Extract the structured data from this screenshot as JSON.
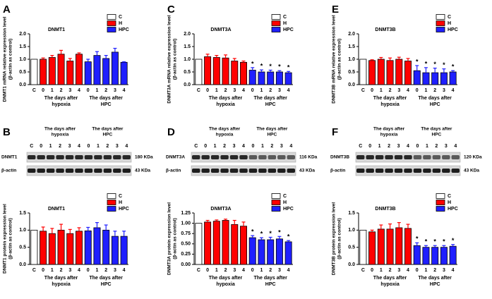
{
  "chart_data": [
    {
      "panel": "A",
      "type": "bar",
      "title": "DNMT1",
      "y_label": [
        "DNMT1 mRNA relative expression level",
        "(β-actin as control)"
      ],
      "categories": [
        "C",
        "0",
        "1",
        "2",
        "3",
        "4",
        "0",
        "1",
        "2",
        "3",
        "4"
      ],
      "group_labels": [
        [
          "The days after",
          "hypoxia"
        ],
        [
          "The days after",
          "HPC"
        ]
      ],
      "series": [
        {
          "name": "C",
          "color": "#ffffff",
          "values": [
            1.0,
            null,
            null,
            null,
            null,
            null,
            null,
            null,
            null,
            null,
            null
          ],
          "errors": [
            null,
            null,
            null,
            null,
            null,
            null,
            null,
            null,
            null,
            null,
            null
          ]
        },
        {
          "name": "H",
          "color": "#ff0000",
          "values": [
            null,
            1.0,
            1.07,
            1.2,
            0.93,
            1.2,
            null,
            null,
            null,
            null,
            null
          ],
          "errors": [
            null,
            0.05,
            0.08,
            0.15,
            0.1,
            0.05,
            null,
            null,
            null,
            null,
            null
          ]
        },
        {
          "name": "HPC",
          "color": "#1f1fff",
          "values": [
            null,
            null,
            null,
            null,
            null,
            null,
            0.9,
            1.15,
            1.03,
            1.28,
            0.88
          ],
          "errors": [
            null,
            null,
            null,
            null,
            null,
            null,
            0.1,
            0.15,
            0.12,
            0.15,
            0.02
          ]
        }
      ],
      "ylim": [
        0,
        2
      ],
      "yticks": [
        {
          "value": 0,
          "label": "0.0"
        },
        0.5,
        {
          "value": 1,
          "label": "1.0"
        },
        1.5,
        {
          "value": 2,
          "label": "2.0"
        }
      ]
    },
    {
      "panel": "C",
      "type": "bar",
      "title": "DNMT3A",
      "y_label": [
        "DNMT3A mRNA relative expression level",
        "(β-actin as control)"
      ],
      "categories": [
        "C",
        "0",
        "1",
        "2",
        "3",
        "4",
        "0",
        "1",
        "2",
        "3",
        "4"
      ],
      "group_labels": [
        [
          "The days after",
          "hypoxia"
        ],
        [
          "The days after",
          "HPC"
        ]
      ],
      "series": [
        {
          "name": "C",
          "color": "#ffffff",
          "values": [
            1.0,
            null,
            null,
            null,
            null,
            null,
            null,
            null,
            null,
            null,
            null
          ],
          "errors": [
            null,
            null,
            null,
            null,
            null,
            null,
            null,
            null,
            null,
            null,
            null
          ]
        },
        {
          "name": "H",
          "color": "#ff0000",
          "values": [
            null,
            1.1,
            1.07,
            1.05,
            0.93,
            0.88,
            null,
            null,
            null,
            null,
            null
          ],
          "errors": [
            null,
            0.1,
            0.08,
            0.12,
            0.1,
            0.05,
            null,
            null,
            null,
            null,
            null
          ]
        },
        {
          "name": "HPC",
          "color": "#1f1fff",
          "values": [
            null,
            null,
            null,
            null,
            null,
            null,
            0.57,
            0.5,
            0.5,
            0.5,
            0.47
          ],
          "errors": [
            null,
            null,
            null,
            null,
            null,
            null,
            0.1,
            0.08,
            0.07,
            0.05,
            0.05
          ]
        }
      ],
      "significance": [
        null,
        null,
        null,
        null,
        null,
        null,
        "*",
        "*",
        "*",
        "*",
        "*"
      ],
      "ylim": [
        0,
        2
      ],
      "yticks": [
        {
          "value": 0,
          "label": "0.0"
        },
        0.5,
        {
          "value": 1,
          "label": "1.0"
        },
        1.5,
        {
          "value": 2,
          "label": "2.0"
        }
      ]
    },
    {
      "panel": "E",
      "type": "bar",
      "title": "DNMT3B",
      "y_label": [
        "DNMT3B mRNA relative expression level",
        "(β-actin as control)"
      ],
      "categories": [
        "C",
        "0",
        "1",
        "2",
        "3",
        "4",
        "0",
        "1",
        "2",
        "3",
        "4"
      ],
      "group_labels": [
        [
          "The days after",
          "hypoxia"
        ],
        [
          "The days after",
          "HPC"
        ]
      ],
      "series": [
        {
          "name": "C",
          "color": "#ffffff",
          "values": [
            1.0,
            null,
            null,
            null,
            null,
            null,
            null,
            null,
            null,
            null,
            null
          ],
          "errors": [
            null,
            null,
            null,
            null,
            null,
            null,
            null,
            null,
            null,
            null,
            null
          ]
        },
        {
          "name": "H",
          "color": "#ff0000",
          "values": [
            null,
            0.95,
            1.0,
            0.95,
            1.0,
            0.93,
            null,
            null,
            null,
            null,
            null
          ],
          "errors": [
            null,
            0.03,
            0.07,
            0.1,
            0.08,
            0.1,
            null,
            null,
            null,
            null,
            null
          ]
        },
        {
          "name": "HPC",
          "color": "#1f1fff",
          "values": [
            null,
            null,
            null,
            null,
            null,
            null,
            0.55,
            0.47,
            0.47,
            0.47,
            0.5
          ],
          "errors": [
            null,
            null,
            null,
            null,
            null,
            null,
            0.2,
            0.2,
            0.18,
            0.15,
            0.05
          ]
        }
      ],
      "significance": [
        null,
        null,
        null,
        null,
        null,
        null,
        "*",
        "*",
        "*",
        "*",
        "*"
      ],
      "ylim": [
        0,
        2
      ],
      "yticks": [
        {
          "value": 0,
          "label": "0.0"
        },
        0.5,
        {
          "value": 1,
          "label": "1.0"
        },
        1.5,
        {
          "value": 2,
          "label": "2.0"
        }
      ]
    },
    {
      "type": "bar",
      "title": "DNMT1",
      "y_label": [
        "DNMT1 protein expression level",
        "(β-actin as control)"
      ],
      "categories": [
        "C",
        "0",
        "1",
        "2",
        "3",
        "4",
        "0",
        "1",
        "2",
        "3",
        "4"
      ],
      "group_labels": [
        [
          "The days after",
          "hypoxia"
        ],
        [
          "The days after",
          "HPC"
        ]
      ],
      "series": [
        {
          "name": "C",
          "color": "#ffffff",
          "values": [
            1.0,
            null,
            null,
            null,
            null,
            null,
            null,
            null,
            null,
            null,
            null
          ],
          "errors": [
            null,
            null,
            null,
            null,
            null,
            null,
            null,
            null,
            null,
            null,
            null
          ]
        },
        {
          "name": "H",
          "color": "#ff0000",
          "values": [
            null,
            0.97,
            0.9,
            1.0,
            0.9,
            0.97,
            null,
            null,
            null,
            null,
            null
          ],
          "errors": [
            null,
            0.12,
            0.15,
            0.17,
            0.12,
            0.1,
            null,
            null,
            null,
            null,
            null
          ]
        },
        {
          "name": "HPC",
          "color": "#1f1fff",
          "values": [
            null,
            null,
            null,
            null,
            null,
            null,
            0.98,
            1.07,
            1.0,
            0.82,
            0.82
          ],
          "errors": [
            null,
            null,
            null,
            null,
            null,
            null,
            0.1,
            0.15,
            0.15,
            0.15,
            0.15
          ]
        }
      ],
      "ylim": [
        0,
        1.5
      ],
      "yticks": [
        {
          "value": 0,
          "label": "0.0"
        },
        0.5,
        {
          "value": 1,
          "label": "1.0"
        },
        1.5
      ]
    },
    {
      "type": "bar",
      "title": "DNMT3A",
      "y_label": [
        "DNMT3A protein expression level",
        "(β-actin as control)"
      ],
      "categories": [
        "C",
        "0",
        "1",
        "2",
        "3",
        "4",
        "0",
        "1",
        "2",
        "3",
        "4"
      ],
      "group_labels": [
        [
          "The days after",
          "hypoxia"
        ],
        [
          "The days after",
          "HPC"
        ]
      ],
      "series": [
        {
          "name": "C",
          "color": "#ffffff",
          "values": [
            1.0,
            null,
            null,
            null,
            null,
            null,
            null,
            null,
            null,
            null,
            null
          ],
          "errors": [
            null,
            null,
            null,
            null,
            null,
            null,
            null,
            null,
            null,
            null,
            null
          ]
        },
        {
          "name": "H",
          "color": "#ff0000",
          "values": [
            null,
            1.03,
            1.05,
            1.07,
            0.97,
            0.93,
            null,
            null,
            null,
            null,
            null
          ],
          "errors": [
            null,
            0.04,
            0.03,
            0.03,
            0.1,
            0.1,
            null,
            null,
            null,
            null,
            null
          ]
        },
        {
          "name": "HPC",
          "color": "#1f1fff",
          "values": [
            null,
            null,
            null,
            null,
            null,
            null,
            0.65,
            0.6,
            0.6,
            0.62,
            0.55
          ],
          "errors": [
            null,
            null,
            null,
            null,
            null,
            null,
            0.05,
            0.05,
            0.06,
            0.06,
            0.03
          ]
        }
      ],
      "significance": [
        null,
        null,
        null,
        null,
        null,
        null,
        "*",
        "*",
        "*",
        "*",
        "*"
      ],
      "ylim": [
        0,
        1.25
      ],
      "yticks": [
        {
          "value": 0,
          "label": "0.00"
        },
        0.25,
        {
          "value": 0.5,
          "label": "0.50"
        },
        0.75,
        {
          "value": 1,
          "label": "1.00"
        },
        1.25
      ]
    },
    {
      "type": "bar",
      "title": "DNMT3B",
      "y_label": [
        "DNMT3B protein expression level",
        "(β-actin as control)"
      ],
      "categories": [
        "C",
        "0",
        "1",
        "2",
        "3",
        "4",
        "0",
        "1",
        "2",
        "3",
        "4"
      ],
      "group_labels": [
        [
          "The days after",
          "hypoxia"
        ],
        [
          "The days after",
          "HPC"
        ]
      ],
      "series": [
        {
          "name": "C",
          "color": "#ffffff",
          "values": [
            1.0,
            null,
            null,
            null,
            null,
            null,
            null,
            null,
            null,
            null,
            null
          ],
          "errors": [
            null,
            null,
            null,
            null,
            null,
            null,
            null,
            null,
            null,
            null,
            null
          ]
        },
        {
          "name": "H",
          "color": "#ff0000",
          "values": [
            null,
            0.95,
            1.03,
            1.03,
            1.07,
            1.05,
            null,
            null,
            null,
            null,
            null
          ],
          "errors": [
            null,
            0.05,
            0.12,
            0.15,
            0.15,
            0.12,
            null,
            null,
            null,
            null,
            null
          ]
        },
        {
          "name": "HPC",
          "color": "#1f1fff",
          "values": [
            null,
            null,
            null,
            null,
            null,
            null,
            0.55,
            0.5,
            0.5,
            0.5,
            0.53
          ],
          "errors": [
            null,
            null,
            null,
            null,
            null,
            null,
            0.08,
            0.05,
            0.05,
            0.05,
            0.05
          ]
        }
      ],
      "significance": [
        null,
        null,
        null,
        null,
        null,
        null,
        "*",
        "*",
        "*",
        "*",
        "*"
      ],
      "ylim": [
        0,
        1.5
      ],
      "yticks": [
        {
          "value": 0,
          "label": "0.0"
        },
        0.5,
        {
          "value": 1,
          "label": "1.0"
        },
        1.5
      ]
    }
  ],
  "blots": [
    {
      "panel": "B",
      "header_groups": [
        [
          "The days after",
          "hypoxia"
        ],
        [
          "The days after",
          "HPC"
        ]
      ],
      "lanes": [
        "C",
        "0",
        "1",
        "2",
        "3",
        "4",
        "0",
        "1",
        "2",
        "3",
        "4"
      ],
      "rows": [
        {
          "name": "DNMT1",
          "size": "180 KDa"
        },
        {
          "name": "β-actin",
          "size": "43 KDa"
        }
      ]
    },
    {
      "panel": "D",
      "header_groups": [
        [
          "The days after",
          "hypoxia"
        ],
        [
          "The days after",
          "HPC"
        ]
      ],
      "lanes": [
        "C",
        "0",
        "1",
        "2",
        "3",
        "4",
        "0",
        "1",
        "2",
        "3",
        "4"
      ],
      "rows": [
        {
          "name": "DNMT3A",
          "size": "116 KDa"
        },
        {
          "name": "β-actin",
          "size": "43 KDa"
        }
      ]
    },
    {
      "panel": "F",
      "header_groups": [
        [
          "The days after",
          "hypoxia"
        ],
        [
          "The days after",
          "HPC"
        ]
      ],
      "lanes": [
        "C",
        "0",
        "1",
        "2",
        "3",
        "4",
        "0",
        "1",
        "2",
        "3",
        "4"
      ],
      "rows": [
        {
          "name": "DNMT3B",
          "size": "120 KDa"
        },
        {
          "name": "β-actin",
          "size": "43 KDa"
        }
      ]
    }
  ]
}
